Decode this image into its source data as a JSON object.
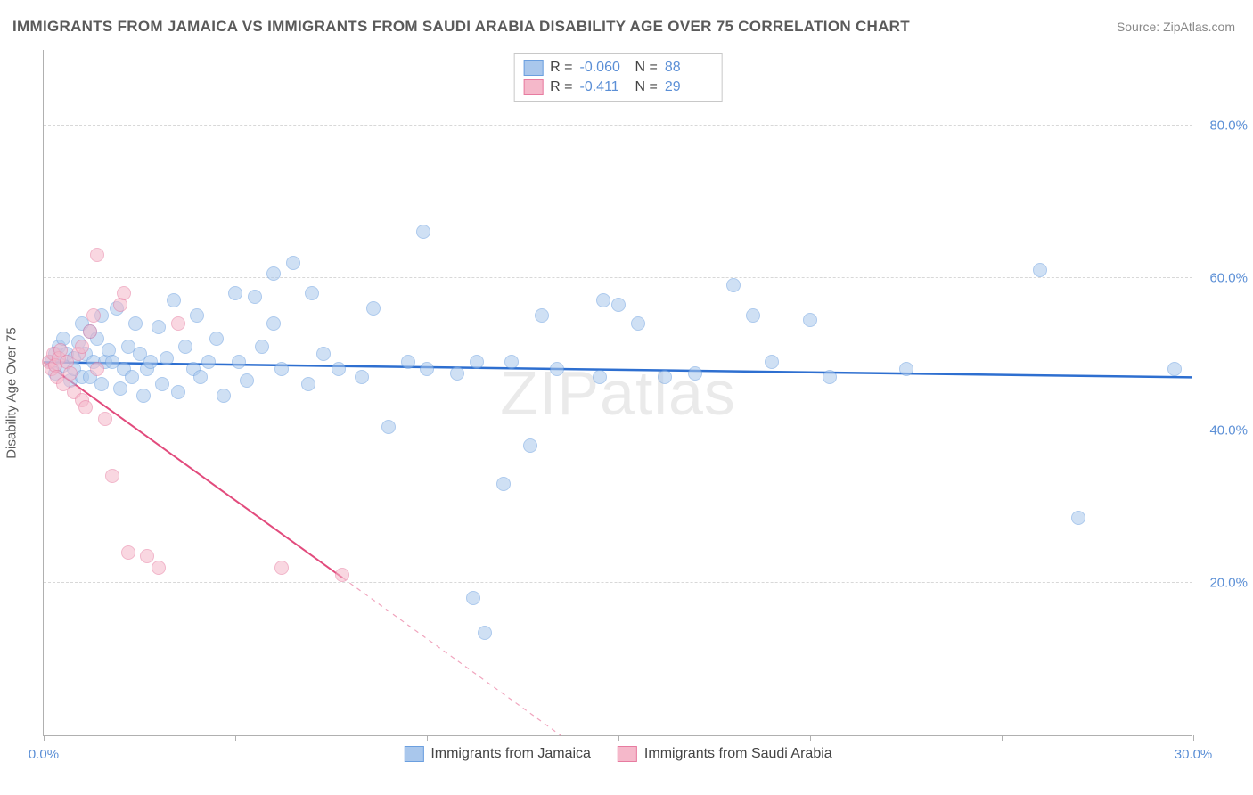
{
  "title": "IMMIGRANTS FROM JAMAICA VS IMMIGRANTS FROM SAUDI ARABIA DISABILITY AGE OVER 75 CORRELATION CHART",
  "source": "Source: ZipAtlas.com",
  "watermark": "ZIPatlas",
  "y_axis_title": "Disability Age Over 75",
  "chart": {
    "type": "scatter",
    "xlim": [
      0,
      30
    ],
    "ylim": [
      0,
      90
    ],
    "x_ticks": [
      0,
      5,
      10,
      15,
      20,
      25,
      30
    ],
    "x_tick_labels": {
      "0": "0.0%",
      "30": "30.0%"
    },
    "y_gridlines": [
      20,
      40,
      60,
      80
    ],
    "y_tick_labels": {
      "20": "20.0%",
      "40": "40.0%",
      "60": "60.0%",
      "80": "80.0%"
    },
    "grid_color": "#d8d8d8",
    "axis_color": "#b0b0b0",
    "label_color": "#5b8fd6",
    "background_color": "#ffffff",
    "point_radius": 8,
    "point_opacity": 0.55
  },
  "series": [
    {
      "name": "Immigrants from Jamaica",
      "color_fill": "#a9c7ec",
      "color_stroke": "#6b9fdf",
      "R": "-0.060",
      "N": "88",
      "trend": {
        "x1": 0,
        "y1": 49,
        "x2": 30,
        "y2": 47,
        "color": "#2e6fd0",
        "width": 2.5,
        "solid_until_x": 30
      },
      "points": [
        [
          0.2,
          49
        ],
        [
          0.3,
          50
        ],
        [
          0.3,
          47.5
        ],
        [
          0.4,
          51
        ],
        [
          0.5,
          48.5
        ],
        [
          0.5,
          52
        ],
        [
          0.6,
          50
        ],
        [
          0.7,
          46.5
        ],
        [
          0.8,
          49.5
        ],
        [
          0.8,
          48
        ],
        [
          0.9,
          51.5
        ],
        [
          1.0,
          47
        ],
        [
          1.0,
          54
        ],
        [
          1.1,
          50
        ],
        [
          1.2,
          53
        ],
        [
          1.2,
          47
        ],
        [
          1.3,
          49
        ],
        [
          1.4,
          52
        ],
        [
          1.5,
          55
        ],
        [
          1.5,
          46
        ],
        [
          1.6,
          49
        ],
        [
          1.7,
          50.5
        ],
        [
          1.8,
          49
        ],
        [
          1.9,
          56
        ],
        [
          2.0,
          45.5
        ],
        [
          2.1,
          48
        ],
        [
          2.2,
          51
        ],
        [
          2.3,
          47
        ],
        [
          2.4,
          54
        ],
        [
          2.5,
          50
        ],
        [
          2.6,
          44.5
        ],
        [
          2.7,
          48
        ],
        [
          2.8,
          49
        ],
        [
          3.0,
          53.5
        ],
        [
          3.1,
          46
        ],
        [
          3.2,
          49.5
        ],
        [
          3.4,
          57
        ],
        [
          3.5,
          45
        ],
        [
          3.7,
          51
        ],
        [
          3.9,
          48
        ],
        [
          4.0,
          55
        ],
        [
          4.1,
          47
        ],
        [
          4.3,
          49
        ],
        [
          4.5,
          52
        ],
        [
          4.7,
          44.5
        ],
        [
          5.0,
          58
        ],
        [
          5.1,
          49
        ],
        [
          5.3,
          46.5
        ],
        [
          5.5,
          57.5
        ],
        [
          5.7,
          51
        ],
        [
          6.0,
          54
        ],
        [
          6.0,
          60.5
        ],
        [
          6.2,
          48
        ],
        [
          6.5,
          62
        ],
        [
          6.9,
          46
        ],
        [
          7.0,
          58
        ],
        [
          7.3,
          50
        ],
        [
          7.7,
          48
        ],
        [
          8.3,
          47
        ],
        [
          8.6,
          56
        ],
        [
          9.0,
          40.5
        ],
        [
          9.5,
          49
        ],
        [
          9.9,
          66
        ],
        [
          10.0,
          48
        ],
        [
          10.8,
          47.5
        ],
        [
          11.2,
          18
        ],
        [
          11.3,
          49
        ],
        [
          11.5,
          13.5
        ],
        [
          12.0,
          33
        ],
        [
          12.2,
          49
        ],
        [
          12.7,
          38
        ],
        [
          13.0,
          55
        ],
        [
          13.4,
          48
        ],
        [
          14.5,
          47
        ],
        [
          14.6,
          57
        ],
        [
          15.0,
          56.5
        ],
        [
          15.5,
          54
        ],
        [
          16.2,
          47
        ],
        [
          17.0,
          47.5
        ],
        [
          18.0,
          59
        ],
        [
          18.5,
          55
        ],
        [
          19.0,
          49
        ],
        [
          20.0,
          54.5
        ],
        [
          20.5,
          47
        ],
        [
          22.5,
          48
        ],
        [
          26.0,
          61
        ],
        [
          27.0,
          28.5
        ],
        [
          29.5,
          48
        ]
      ]
    },
    {
      "name": "Immigrants from Saudi Arabia",
      "color_fill": "#f5b8ca",
      "color_stroke": "#e77ba0",
      "R": "-0.411",
      "N": "29",
      "trend": {
        "x1": 0,
        "y1": 49,
        "x2": 13.5,
        "y2": 0,
        "color": "#e24b7d",
        "width": 2,
        "solid_until_x": 7.8
      },
      "points": [
        [
          0.15,
          49
        ],
        [
          0.2,
          48
        ],
        [
          0.25,
          50
        ],
        [
          0.3,
          48.5
        ],
        [
          0.35,
          47
        ],
        [
          0.4,
          49.5
        ],
        [
          0.45,
          50.5
        ],
        [
          0.5,
          46
        ],
        [
          0.6,
          49
        ],
        [
          0.7,
          47.5
        ],
        [
          0.8,
          45
        ],
        [
          0.9,
          50
        ],
        [
          1.0,
          44
        ],
        [
          1.0,
          51
        ],
        [
          1.1,
          43
        ],
        [
          1.2,
          53
        ],
        [
          1.3,
          55
        ],
        [
          1.4,
          48
        ],
        [
          1.4,
          63
        ],
        [
          1.6,
          41.5
        ],
        [
          1.8,
          34
        ],
        [
          2.0,
          56.5
        ],
        [
          2.1,
          58
        ],
        [
          2.2,
          24
        ],
        [
          2.7,
          23.5
        ],
        [
          3.0,
          22
        ],
        [
          3.5,
          54
        ],
        [
          6.2,
          22
        ],
        [
          7.8,
          21
        ]
      ]
    }
  ],
  "legend_top": [
    {
      "swatch_fill": "#a9c7ec",
      "swatch_stroke": "#6b9fdf",
      "R_label": "R =",
      "R_val": "-0.060",
      "N_label": "N =",
      "N_val": "88"
    },
    {
      "swatch_fill": "#f5b8ca",
      "swatch_stroke": "#e77ba0",
      "R_label": "R =",
      "R_val": "-0.411",
      "N_label": "N =",
      "N_val": "29"
    }
  ],
  "legend_bottom": [
    {
      "swatch_fill": "#a9c7ec",
      "swatch_stroke": "#6b9fdf",
      "label": "Immigrants from Jamaica"
    },
    {
      "swatch_fill": "#f5b8ca",
      "swatch_stroke": "#e77ba0",
      "label": "Immigrants from Saudi Arabia"
    }
  ]
}
